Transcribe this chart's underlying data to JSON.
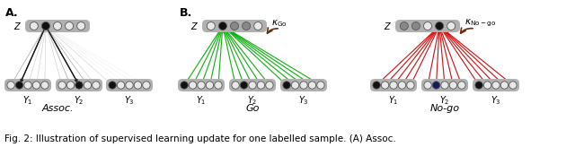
{
  "title": "Fig. 2: Illustration of supervised learning update for one labelled sample. (A) Assoc.",
  "panel_A_label": "A.",
  "panel_B_label": "B.",
  "assoc_label": "Assoc.",
  "go_label": "Go",
  "nogo_label": "No-go",
  "bg_color": "#ffffff",
  "gray_box_color": "#b0b0b0",
  "neuron_empty": "#e8e8e8",
  "neuron_black": "#111111",
  "neuron_darkgray": "#888888",
  "neuron_navy": "#1a1a5e",
  "green_color": "#00aa00",
  "red_color": "#cc0000",
  "arrow_brown": "#6b2a0a",
  "caption_color": "#000000"
}
